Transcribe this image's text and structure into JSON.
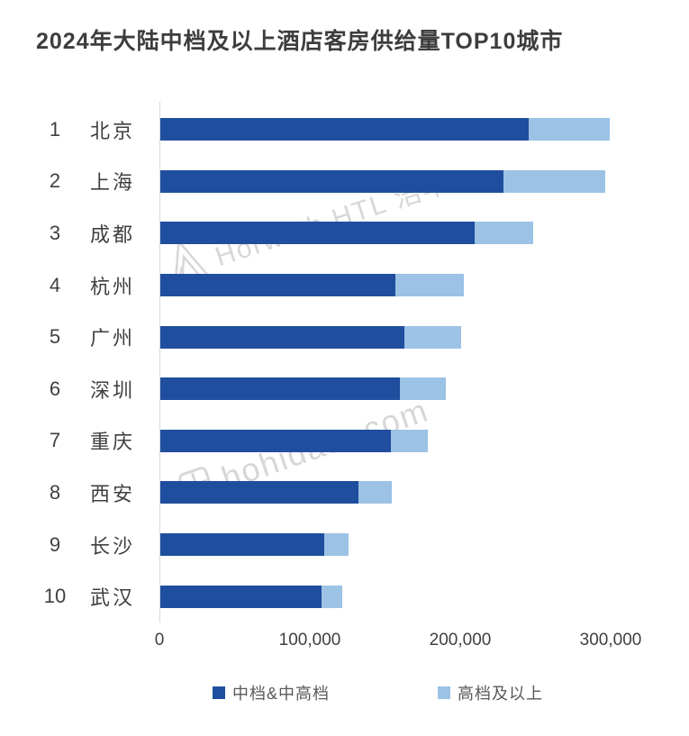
{
  "title": "2024年大陆中档及以上酒店客房供给量TOP10城市",
  "watermarks": {
    "brand": "Horwath HTL 浩华",
    "site": "hohidata.com"
  },
  "colors": {
    "mid_dark_blue": "#1F4E9E",
    "upscale_light_blue": "#9CC2E5",
    "axis_gray": "#D9D9D9",
    "label_gray": "#404040",
    "legend_text_gray": "#595959",
    "watermark_gray": "#D7D7D7"
  },
  "chart_data": {
    "type": "bar",
    "orientation": "horizontal",
    "stacked": true,
    "title": "2024年大陆中档及以上酒店客房供给量TOP10城市",
    "ranks": [
      "1",
      "2",
      "3",
      "4",
      "5",
      "6",
      "7",
      "8",
      "9",
      "10"
    ],
    "categories": [
      "北京",
      "上海",
      "成都",
      "杭州",
      "广州",
      "深圳",
      "重庆",
      "西安",
      "长沙",
      "武汉"
    ],
    "series": [
      {
        "name": "中档&中高档",
        "color": "#1F4E9E",
        "values": [
          245000,
          228000,
          209000,
          156000,
          162000,
          159000,
          153000,
          132000,
          109000,
          107000
        ]
      },
      {
        "name": "高档及以上",
        "color": "#9CC2E5",
        "values": [
          54000,
          68000,
          39000,
          46000,
          38000,
          31000,
          25000,
          22000,
          16000,
          14000
        ]
      }
    ],
    "totals": [
      299000,
      296000,
      248000,
      202000,
      200000,
      190000,
      178000,
      154000,
      125000,
      121000
    ],
    "xlim": [
      0,
      300000
    ],
    "xticks": [
      "0",
      "100,000",
      "200,000",
      "300,000"
    ],
    "xtick_values": [
      0,
      100000,
      200000,
      300000
    ],
    "grid": false,
    "legend_position": "bottom"
  }
}
